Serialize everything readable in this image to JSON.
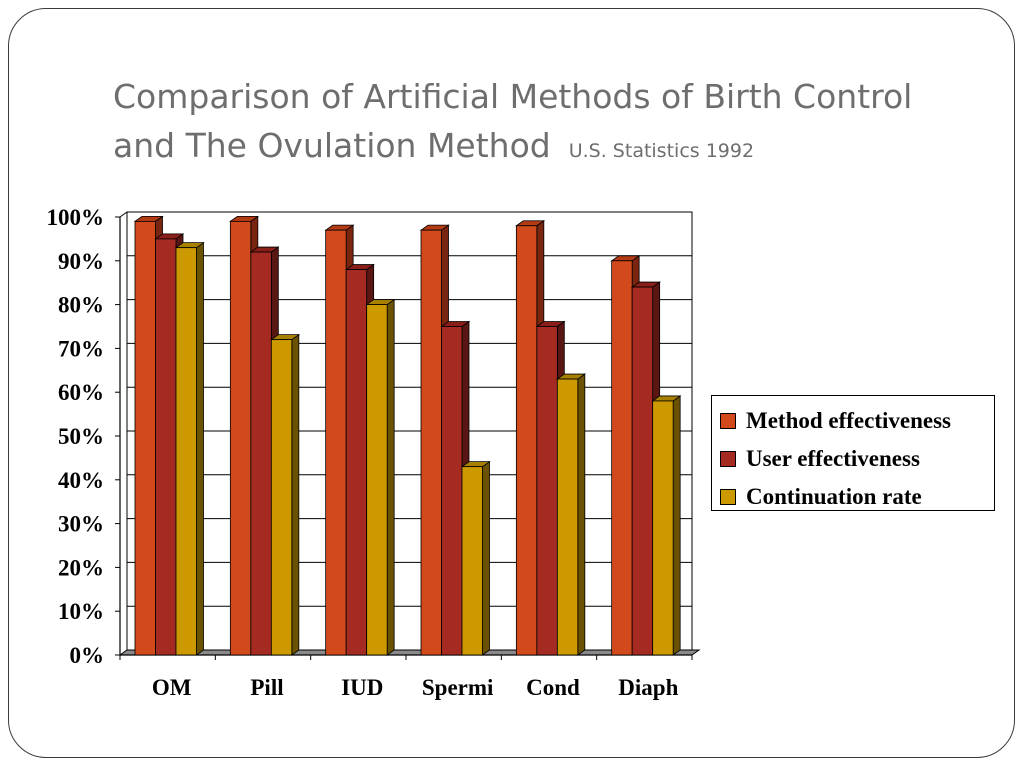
{
  "slide": {
    "title_line1": "Comparison of Artificial Methods of Birth Control",
    "title_line2": "and The Ovulation Method",
    "subtitle": "U.S. Statistics  1992"
  },
  "colors": {
    "series": [
      "#d24a1c",
      "#a52a22",
      "#cc9900"
    ],
    "series_side": [
      "#7a2510",
      "#5a1612",
      "#6b5200"
    ],
    "series_top": [
      "#b23a14",
      "#8a1e18",
      "#a88000"
    ]
  },
  "chart_data": {
    "type": "bar",
    "categories": [
      "OM",
      "Pill",
      "IUD",
      "Spermi",
      "Cond",
      "Diaph"
    ],
    "series": [
      {
        "name": "Method effectiveness",
        "values": [
          99,
          99,
          97,
          97,
          98,
          90
        ]
      },
      {
        "name": "User effectiveness",
        "values": [
          95,
          92,
          88,
          75,
          75,
          84
        ]
      },
      {
        "name": "Continuation rate",
        "values": [
          93,
          72,
          80,
          43,
          63,
          58
        ]
      }
    ],
    "ylim": [
      0,
      100
    ],
    "yticks": [
      "0%",
      "10%",
      "20%",
      "30%",
      "40%",
      "50%",
      "60%",
      "70%",
      "80%",
      "90%",
      "100%"
    ],
    "grid": true,
    "legend_position": "right",
    "xlabel": "",
    "ylabel": ""
  }
}
